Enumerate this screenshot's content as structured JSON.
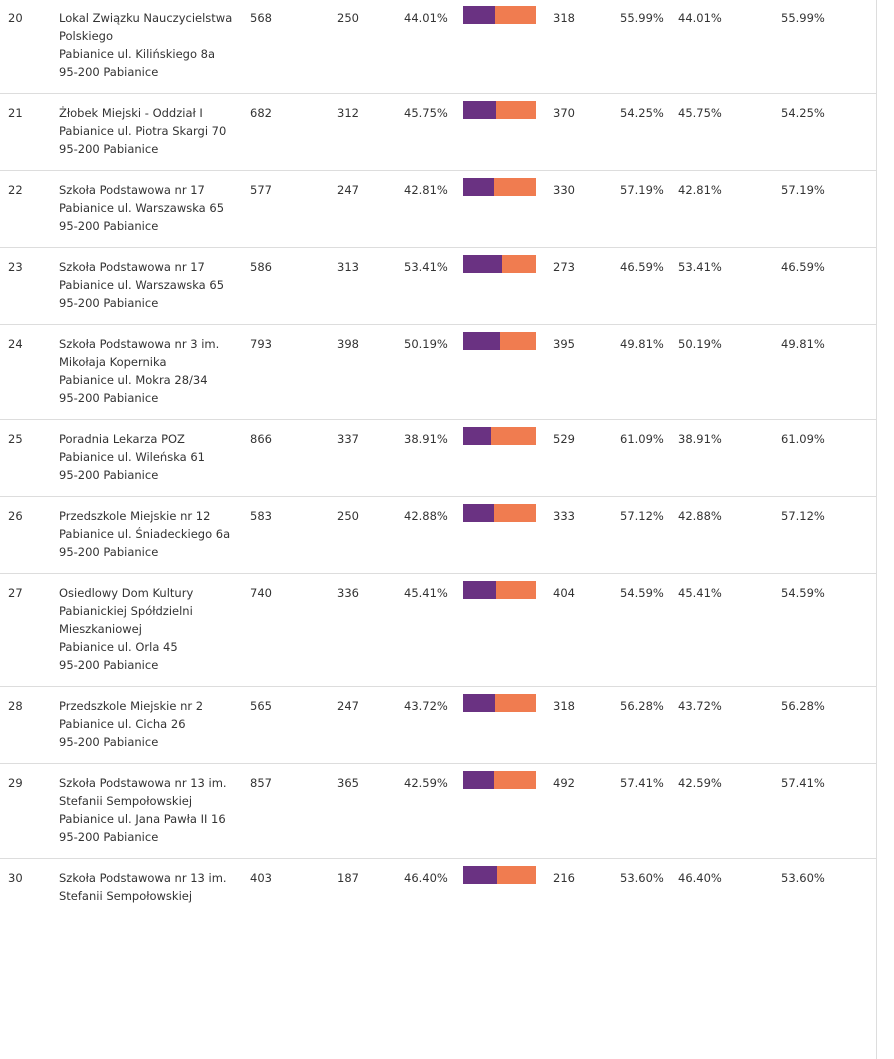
{
  "colors": {
    "bar_a": "#6a3282",
    "bar_b": "#f07c50",
    "divider": "#dddddd",
    "text": "#333333"
  },
  "rows": [
    {
      "no": "20",
      "name_lines": [
        "Lokal Związku Nauczycielstwa",
        "Polskiego",
        "Pabianice ul. Kilińskiego 8a",
        "95-200 Pabianice"
      ],
      "total": "568",
      "a": "250",
      "a_pct": "44.01%",
      "a_share": 44.01,
      "b": "318",
      "b_pct": "55.99%",
      "a_pct2": "44.01%",
      "b_pct2": "55.99%"
    },
    {
      "no": "21",
      "name_lines": [
        "Żłobek Miejski - Oddział I",
        "Pabianice ul. Piotra Skargi 70",
        "95-200 Pabianice"
      ],
      "total": "682",
      "a": "312",
      "a_pct": "45.75%",
      "a_share": 45.75,
      "b": "370",
      "b_pct": "54.25%",
      "a_pct2": "45.75%",
      "b_pct2": "54.25%"
    },
    {
      "no": "22",
      "name_lines": [
        "Szkoła Podstawowa nr 17",
        "Pabianice ul. Warszawska 65",
        "95-200 Pabianice"
      ],
      "total": "577",
      "a": "247",
      "a_pct": "42.81%",
      "a_share": 42.81,
      "b": "330",
      "b_pct": "57.19%",
      "a_pct2": "42.81%",
      "b_pct2": "57.19%"
    },
    {
      "no": "23",
      "name_lines": [
        "Szkoła Podstawowa nr 17",
        "Pabianice ul. Warszawska 65",
        "95-200 Pabianice"
      ],
      "total": "586",
      "a": "313",
      "a_pct": "53.41%",
      "a_share": 53.41,
      "b": "273",
      "b_pct": "46.59%",
      "a_pct2": "53.41%",
      "b_pct2": "46.59%"
    },
    {
      "no": "24",
      "name_lines": [
        "Szkoła Podstawowa nr 3 im.",
        "Mikołaja Kopernika",
        "Pabianice ul. Mokra 28/34",
        "95-200 Pabianice"
      ],
      "total": "793",
      "a": "398",
      "a_pct": "50.19%",
      "a_share": 50.19,
      "b": "395",
      "b_pct": "49.81%",
      "a_pct2": "50.19%",
      "b_pct2": "49.81%"
    },
    {
      "no": "25",
      "name_lines": [
        "Poradnia Lekarza POZ",
        "Pabianice ul. Wileńska 61",
        "95-200 Pabianice"
      ],
      "total": "866",
      "a": "337",
      "a_pct": "38.91%",
      "a_share": 38.91,
      "b": "529",
      "b_pct": "61.09%",
      "a_pct2": "38.91%",
      "b_pct2": "61.09%"
    },
    {
      "no": "26",
      "name_lines": [
        "Przedszkole Miejskie nr 12",
        "Pabianice ul. Śniadeckiego 6a",
        "95-200 Pabianice"
      ],
      "total": "583",
      "a": "250",
      "a_pct": "42.88%",
      "a_share": 42.88,
      "b": "333",
      "b_pct": "57.12%",
      "a_pct2": "42.88%",
      "b_pct2": "57.12%"
    },
    {
      "no": "27",
      "name_lines": [
        "Osiedlowy Dom Kultury",
        "Pabianickiej Spółdzielni",
        "Mieszkaniowej",
        "Pabianice ul. Orla 45",
        "95-200 Pabianice"
      ],
      "total": "740",
      "a": "336",
      "a_pct": "45.41%",
      "a_share": 45.41,
      "b": "404",
      "b_pct": "54.59%",
      "a_pct2": "45.41%",
      "b_pct2": "54.59%"
    },
    {
      "no": "28",
      "name_lines": [
        "Przedszkole Miejskie nr 2",
        "Pabianice ul. Cicha 26",
        "95-200 Pabianice"
      ],
      "total": "565",
      "a": "247",
      "a_pct": "43.72%",
      "a_share": 43.72,
      "b": "318",
      "b_pct": "56.28%",
      "a_pct2": "43.72%",
      "b_pct2": "56.28%"
    },
    {
      "no": "29",
      "name_lines": [
        "Szkoła Podstawowa nr 13 im.",
        "Stefanii Sempołowskiej",
        "Pabianice ul. Jana Pawła II 16",
        "95-200 Pabianice"
      ],
      "total": "857",
      "a": "365",
      "a_pct": "42.59%",
      "a_share": 42.59,
      "b": "492",
      "b_pct": "57.41%",
      "a_pct2": "42.59%",
      "b_pct2": "57.41%"
    },
    {
      "no": "30",
      "name_lines": [
        "Szkoła Podstawowa nr 13 im.",
        "Stefanii Sempołowskiej"
      ],
      "total": "403",
      "a": "187",
      "a_pct": "46.40%",
      "a_share": 46.4,
      "b": "216",
      "b_pct": "53.60%",
      "a_pct2": "46.40%",
      "b_pct2": "53.60%"
    }
  ]
}
